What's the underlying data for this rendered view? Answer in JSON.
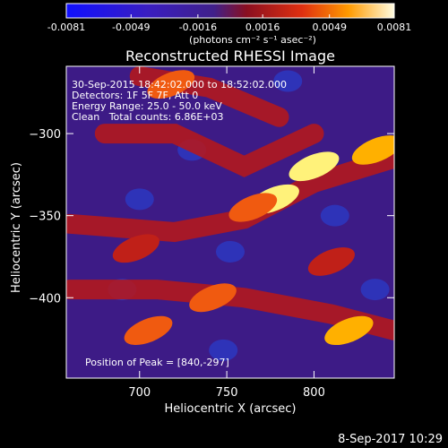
{
  "colorbar": {
    "ticks": [
      "-0.0081",
      "-0.0049",
      "-0.0016",
      "0.0016",
      "0.0049",
      "0.0081"
    ],
    "tick_values": [
      -0.0081,
      -0.0049,
      -0.0016,
      0.0016,
      0.0049,
      0.0081
    ],
    "range": [
      -0.0081,
      0.0081
    ],
    "units": "(photons cm⁻² s⁻¹ asec⁻²)"
  },
  "plot": {
    "title": "Reconstructed RHESSI Image",
    "xlabel": "Heliocentric X (arcsec)",
    "ylabel": "Heliocentric Y (arcsec)",
    "info_lines": [
      "30-Sep-2015 18:42:02.000 to 18:52:02.000",
      "Detectors: 1F 5F 7F, Att 0",
      "Energy Range: 25.0 - 50.0 keV",
      "Clean   Total counts: 6.86E+03"
    ],
    "peak_text": "Position of Peak = [840,-297]"
  },
  "footer": {
    "timestamp": "8-Sep-2017 10:29"
  },
  "chart_data": {
    "type": "heatmap",
    "title": "Reconstructed RHESSI Image",
    "xlabel": "Heliocentric X (arcsec)",
    "ylabel": "Heliocentric Y (arcsec)",
    "xlim": [
      658,
      846
    ],
    "ylim": [
      -449,
      -259
    ],
    "xticks": [
      700,
      750,
      800
    ],
    "yticks": [
      -300,
      -350,
      -400
    ],
    "colormap": "RHESSI color table (blue-purple to red-yellow-white)",
    "peak": {
      "x": 840,
      "y": -297
    },
    "emission_regions": [
      {
        "x": 777,
        "y": -340,
        "level": 1.0
      },
      {
        "x": 800,
        "y": -320,
        "level": 0.95
      },
      {
        "x": 836,
        "y": -310,
        "level": 0.9
      },
      {
        "x": 765,
        "y": -345,
        "level": 0.75
      },
      {
        "x": 705,
        "y": -420,
        "level": 0.75
      },
      {
        "x": 820,
        "y": -420,
        "level": 0.8
      },
      {
        "x": 718,
        "y": -270,
        "level": 0.65
      },
      {
        "x": 742,
        "y": -400,
        "level": 0.65
      },
      {
        "x": 698,
        "y": -370,
        "level": 0.6
      },
      {
        "x": 810,
        "y": -378,
        "level": 0.6
      }
    ]
  }
}
